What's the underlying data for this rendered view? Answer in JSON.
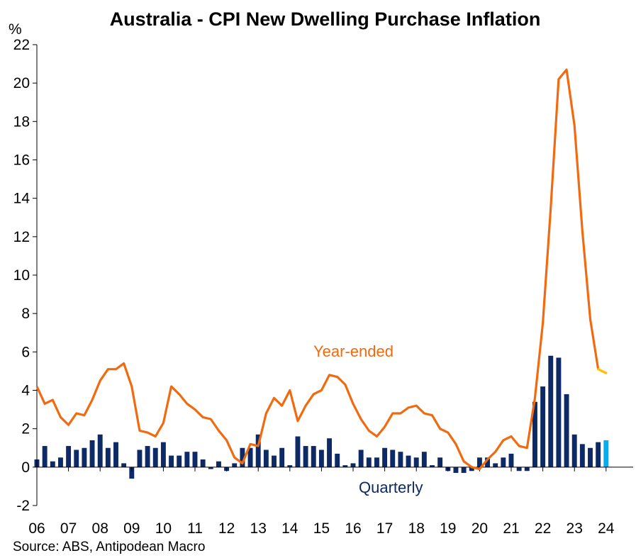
{
  "chart_data": {
    "type": "bar+line",
    "title": "Australia - CPI New Dwelling Purchase Inflation",
    "ylabel": "%",
    "source": "Source: ABS, Antipodean Macro",
    "ylim": [
      -2,
      22
    ],
    "yticks": [
      -2,
      0,
      2,
      4,
      6,
      8,
      10,
      12,
      14,
      16,
      18,
      20,
      22
    ],
    "xticks": [
      "06",
      "07",
      "08",
      "09",
      "10",
      "11",
      "12",
      "13",
      "14",
      "15",
      "16",
      "17",
      "18",
      "19",
      "20",
      "21",
      "22",
      "23",
      "24"
    ],
    "x_start": 2006.0,
    "x_end": 2024.0,
    "quarters_per_year": 4,
    "grid": false,
    "series": [
      {
        "name": "Year-ended",
        "kind": "line",
        "color": "#f26a0f",
        "latest_color": "#ffc000",
        "values": [
          4.2,
          3.3,
          3.5,
          2.6,
          2.2,
          2.8,
          2.7,
          3.5,
          4.5,
          5.1,
          5.1,
          5.4,
          4.2,
          1.9,
          1.8,
          1.6,
          2.3,
          4.2,
          3.8,
          3.3,
          3.0,
          2.6,
          2.5,
          1.9,
          1.4,
          0.5,
          0.2,
          1.2,
          1.1,
          2.8,
          3.6,
          3.2,
          4.0,
          2.4,
          3.2,
          3.8,
          4.0,
          4.8,
          4.7,
          4.3,
          3.3,
          2.5,
          1.9,
          1.6,
          2.1,
          2.8,
          2.8,
          3.1,
          3.2,
          2.8,
          2.7,
          2.0,
          1.8,
          1.2,
          0.3,
          0.0,
          -0.1,
          0.4,
          0.8,
          1.4,
          1.6,
          1.1,
          1.0,
          3.6,
          7.5,
          13.5,
          20.2,
          20.7,
          17.8,
          12.3,
          7.7,
          5.1,
          4.9
        ]
      },
      {
        "name": "Quarterly",
        "kind": "bar",
        "color": "#0d2a66",
        "latest_color": "#00b0f0",
        "values": [
          0.4,
          1.1,
          0.3,
          0.5,
          1.1,
          0.9,
          1.0,
          1.4,
          1.7,
          1.0,
          1.3,
          0.2,
          -0.6,
          0.9,
          1.1,
          1.0,
          1.3,
          0.6,
          0.6,
          0.8,
          0.8,
          0.4,
          -0.1,
          0.3,
          -0.2,
          0.2,
          1.0,
          1.0,
          1.7,
          0.9,
          0.6,
          1.0,
          0.1,
          1.6,
          1.1,
          1.1,
          0.9,
          1.5,
          0.7,
          0.1,
          0.2,
          0.9,
          0.5,
          0.5,
          1.0,
          0.9,
          0.8,
          0.6,
          0.5,
          0.8,
          0.1,
          0.5,
          -0.2,
          -0.3,
          -0.3,
          -0.2,
          0.5,
          0.5,
          0.2,
          0.5,
          0.7,
          -0.2,
          -0.2,
          3.4,
          4.2,
          5.8,
          5.7,
          3.8,
          1.7,
          1.2,
          1.0,
          1.3,
          1.4
        ]
      }
    ]
  }
}
